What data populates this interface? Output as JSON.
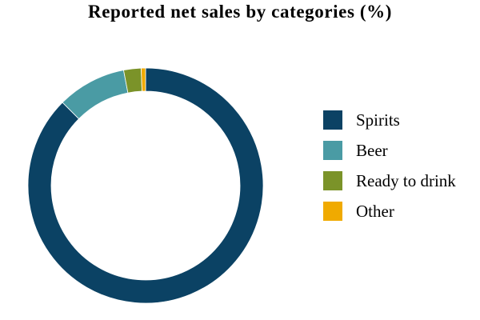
{
  "chart_data": {
    "type": "pie",
    "title": "Reported net sales by categories (%)",
    "categories": [
      "Spirits",
      "Beer",
      "Ready to drink",
      "Other"
    ],
    "values": [
      87.5,
      9.5,
      2.4,
      0.6
    ],
    "colors": [
      "#0b4264",
      "#4a9ba4",
      "#7b9329",
      "#f0aa00"
    ],
    "legend_position": "right"
  }
}
